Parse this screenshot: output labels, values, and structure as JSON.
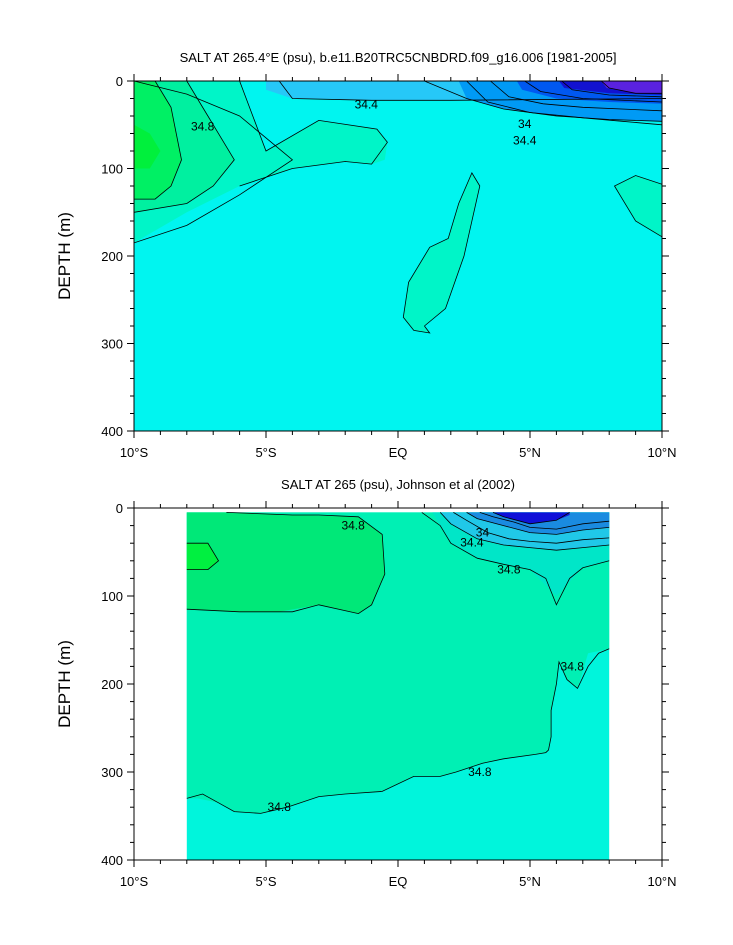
{
  "chart_data": [
    {
      "type": "heatmap",
      "title": "SALT AT 265.4°E (psu), b.e11.B20TRC5CNBDRD.f09_g16.006 [1981-2005]",
      "xlabel": "",
      "ylabel": "DEPTH (m)",
      "xlim": [
        -10,
        10
      ],
      "ylim": [
        400,
        0
      ],
      "x_ticks": [
        -10,
        -5,
        0,
        5,
        10
      ],
      "x_tick_labels": [
        "10°S",
        "5°S",
        "EQ",
        "5°N",
        "10°N"
      ],
      "y_ticks": [
        0,
        100,
        200,
        300,
        400
      ],
      "y_tick_labels": [
        "0",
        "100",
        "200",
        "300",
        "400"
      ],
      "data_extent_lat": [
        -10,
        10
      ],
      "background_color": "#00f5f0",
      "contour_labels": [
        {
          "text": "34.8",
          "lat": -7.4,
          "depth": 52
        },
        {
          "text": "34.4",
          "lat": -1.2,
          "depth": 27
        },
        {
          "text": "34",
          "lat": 4.8,
          "depth": 49
        },
        {
          "text": "34.4",
          "lat": 4.8,
          "depth": 68
        }
      ],
      "regions": [
        {
          "value": 34.2,
          "color": "#26c8f8",
          "lat": [
            -5,
            -1,
            0,
            2,
            10,
            10,
            2,
            -1,
            -4,
            -5
          ],
          "depth": [
            0,
            0,
            0,
            0,
            0,
            20,
            22,
            22,
            20,
            10
          ]
        },
        {
          "value": 34.0,
          "color": "#009af5",
          "lat": [
            2.3,
            2.6,
            4,
            6,
            8,
            10,
            10,
            8,
            6,
            4,
            2.8
          ],
          "depth": [
            0,
            20,
            32,
            40,
            44,
            46,
            0,
            0,
            0,
            0,
            0
          ]
        },
        {
          "value": 33.6,
          "color": "#0058f0",
          "lat": [
            4.5,
            4.7,
            6,
            8,
            10,
            10,
            8,
            6
          ],
          "depth": [
            0,
            10,
            20,
            24,
            26,
            0,
            0,
            0
          ]
        },
        {
          "value": 33.2,
          "color": "#1212d0",
          "lat": [
            6.1,
            6.3,
            8,
            10,
            10,
            8
          ],
          "depth": [
            0,
            8,
            14,
            16,
            0,
            0
          ]
        },
        {
          "value": 32.8,
          "color": "#5a22e0",
          "lat": [
            7.7,
            7.9,
            9,
            10,
            10
          ],
          "depth": [
            0,
            8,
            14,
            14,
            0
          ]
        },
        {
          "value": 34.6,
          "color": "#00f5c8",
          "lat": [
            -10,
            -6,
            -5,
            -3,
            -0.8,
            -0.4,
            -0.5,
            -1,
            -2,
            -4,
            -6,
            -8,
            -10
          ],
          "depth": [
            0,
            0,
            80,
            45,
            55,
            70,
            90,
            95,
            92,
            100,
            120,
            150,
            185
          ]
        },
        {
          "value": 34.6,
          "color": "#00f5c8",
          "lat": [
            1,
            1.8,
            2.5,
            3.1,
            2.8,
            2.3,
            1.9,
            1.2,
            0.4,
            0.2,
            0.6,
            1.2
          ],
          "depth": [
            280,
            260,
            200,
            120,
            105,
            140,
            180,
            190,
            230,
            270,
            285,
            288
          ]
        },
        {
          "value": 34.6,
          "color": "#00f5c8",
          "lat": [
            8.2,
            9,
            10,
            10,
            9,
            8.4
          ],
          "depth": [
            120,
            108,
            118,
            178,
            160,
            130
          ]
        },
        {
          "value": 34.8,
          "color": "#00f0a0",
          "lat": [
            -10,
            -8,
            -7.2,
            -6.2,
            -7,
            -8,
            -10
          ],
          "depth": [
            0,
            0,
            40,
            90,
            120,
            140,
            150
          ]
        },
        {
          "value": 35.0,
          "color": "#00f064",
          "lat": [
            -10,
            -9.2,
            -8.6,
            -8.2,
            -8.6,
            -9.2,
            -10
          ],
          "depth": [
            0,
            0,
            30,
            90,
            120,
            135,
            135
          ]
        },
        {
          "value": 35.2,
          "color": "#00f03c",
          "lat": [
            -10,
            -9.4,
            -9,
            -9.4,
            -10
          ],
          "depth": [
            50,
            60,
            80,
            100,
            100
          ]
        }
      ],
      "contour_lines": [
        {
          "lat": [
            -10,
            -8,
            -6,
            -4,
            -6,
            -8,
            -10
          ],
          "depth": [
            185,
            165,
            130,
            90,
            40,
            15,
            0
          ]
        },
        {
          "lat": [
            -6,
            -5,
            -3,
            -0.8,
            -0.4,
            -1,
            -2,
            -4,
            -6
          ],
          "depth": [
            0,
            80,
            45,
            55,
            70,
            95,
            92,
            100,
            120
          ]
        },
        {
          "lat": [
            -4.5,
            -4,
            -1,
            2,
            10
          ],
          "depth": [
            0,
            20,
            22,
            22,
            20
          ]
        },
        {
          "lat": [
            1,
            2.6,
            4,
            6,
            8,
            10
          ],
          "depth": [
            0,
            20,
            32,
            40,
            44,
            46
          ]
        },
        {
          "lat": [
            2.6,
            3.4,
            5,
            7,
            8.5,
            10
          ],
          "depth": [
            0,
            24,
            36,
            42,
            46,
            50
          ]
        },
        {
          "lat": [
            3.5,
            4.2,
            5.5,
            7,
            10
          ],
          "depth": [
            0,
            18,
            26,
            30,
            34
          ]
        },
        {
          "lat": [
            4.8,
            5.4,
            7,
            10
          ],
          "depth": [
            0,
            12,
            20,
            24
          ]
        },
        {
          "lat": [
            6.2,
            6.6,
            8,
            10
          ],
          "depth": [
            0,
            10,
            16,
            18
          ]
        },
        {
          "lat": [
            7.7,
            8,
            9,
            10
          ],
          "depth": [
            0,
            8,
            14,
            14
          ]
        },
        {
          "lat": [
            -8,
            -7.2,
            -6.2,
            -7,
            -8,
            -10
          ],
          "depth": [
            0,
            40,
            90,
            120,
            140,
            150
          ]
        },
        {
          "lat": [
            -9.2,
            -8.6,
            -8.2,
            -8.6,
            -9.2,
            -10
          ],
          "depth": [
            0,
            30,
            90,
            120,
            135,
            135
          ]
        },
        {
          "lat": [
            1,
            1.8,
            2.5,
            3.1,
            2.8,
            2.3,
            1.9,
            1.2,
            0.4,
            0.2,
            0.6,
            1.2,
            1
          ],
          "depth": [
            280,
            260,
            200,
            120,
            105,
            140,
            180,
            190,
            230,
            270,
            285,
            288,
            280
          ]
        },
        {
          "lat": [
            10,
            9,
            8.2,
            8.4,
            9,
            10
          ],
          "depth": [
            118,
            108,
            120,
            130,
            160,
            178
          ]
        }
      ]
    },
    {
      "type": "heatmap",
      "title": "SALT AT 265 (psu), Johnson et al (2002)",
      "xlabel": "",
      "ylabel": "DEPTH (m)",
      "xlim": [
        -10,
        10
      ],
      "ylim": [
        400,
        0
      ],
      "x_ticks": [
        -10,
        -5,
        0,
        5,
        10
      ],
      "x_tick_labels": [
        "10°S",
        "5°S",
        "EQ",
        "5°N",
        "10°N"
      ],
      "y_ticks": [
        0,
        100,
        200,
        300,
        400
      ],
      "y_tick_labels": [
        "0",
        "100",
        "200",
        "300",
        "400"
      ],
      "data_extent_lat": [
        -8,
        8
      ],
      "data_extent_depth": [
        5,
        400
      ],
      "background_color": "#00f5dc",
      "contour_labels": [
        {
          "text": "34.8",
          "lat": -1.7,
          "depth": 20
        },
        {
          "text": "34",
          "lat": 3.2,
          "depth": 28
        },
        {
          "text": "34.4",
          "lat": 2.8,
          "depth": 39
        },
        {
          "text": "34.8",
          "lat": 4.2,
          "depth": 70
        },
        {
          "text": "34.8",
          "lat": 6.6,
          "depth": 180
        },
        {
          "text": "34.8",
          "lat": 3.1,
          "depth": 300
        },
        {
          "text": "34.8",
          "lat": -4.5,
          "depth": 340
        }
      ],
      "regions": [
        {
          "value": 34.9,
          "color": "#00f0b4",
          "lat": [
            -8,
            8,
            8,
            7.2,
            6.8,
            6.4,
            6.1,
            6,
            5.8,
            5.8,
            5.7,
            5.6,
            5.2,
            4,
            3.2,
            2.2,
            1.6,
            0.6,
            -0.6,
            -2,
            -3,
            -4.2,
            -5.2,
            -6.2,
            -6.8,
            -7.6,
            -8
          ],
          "depth": [
            5,
            5,
            160,
            165,
            205,
            195,
            175,
            200,
            230,
            260,
            275,
            278,
            280,
            285,
            290,
            300,
            305,
            305,
            322,
            325,
            328,
            340,
            347,
            345,
            335,
            330,
            330
          ]
        },
        {
          "value": 34.6,
          "color": "#00e6c8",
          "lat": [
            0.9,
            1.3,
            1.6,
            2,
            3,
            4,
            5,
            6,
            7,
            8,
            8,
            1.2
          ],
          "depth": [
            5,
            5,
            20,
            40,
            57,
            64,
            70,
            100,
            68,
            60,
            5,
            5
          ]
        },
        {
          "value": 34.4,
          "color": "#20c8e8",
          "lat": [
            1.6,
            2,
            3,
            4,
            5,
            6,
            7,
            8,
            8,
            2
          ],
          "depth": [
            5,
            18,
            35,
            42,
            45,
            48,
            45,
            42,
            5,
            5
          ]
        },
        {
          "value": 34.0,
          "color": "#1a8be0",
          "lat": [
            2.6,
            3,
            4,
            5,
            6,
            7,
            8,
            8,
            3
          ],
          "depth": [
            5,
            12,
            20,
            28,
            30,
            25,
            22,
            5,
            5
          ]
        },
        {
          "value": 33.4,
          "color": "#1010d8",
          "lat": [
            3.6,
            4,
            5,
            6,
            6.5,
            6.5,
            4
          ],
          "depth": [
            5,
            10,
            18,
            14,
            8,
            5,
            5
          ]
        },
        {
          "value": 35.0,
          "color": "#00e878",
          "lat": [
            -8,
            -6.5,
            -4,
            -1.5,
            -0.6,
            -0.5,
            -1,
            -1.5,
            -3,
            -4.5,
            -6,
            -8
          ],
          "depth": [
            5,
            5,
            8,
            10,
            30,
            75,
            110,
            120,
            110,
            118,
            118,
            115
          ]
        },
        {
          "value": 35.2,
          "color": "#00f040",
          "lat": [
            -8,
            -7.2,
            -6.8,
            -7.2,
            -8
          ],
          "depth": [
            40,
            40,
            60,
            70,
            70
          ]
        }
      ],
      "contour_lines": [
        {
          "lat": [
            -8,
            -6,
            -4,
            -3,
            -1.5,
            -1,
            -0.5,
            -0.6,
            -1.5,
            -3,
            -4,
            -6.5
          ],
          "depth": [
            115,
            118,
            118,
            110,
            120,
            110,
            75,
            30,
            10,
            8,
            8,
            5
          ]
        },
        {
          "lat": [
            -8,
            -7.2,
            -6.8,
            -7.2,
            -8
          ],
          "depth": [
            40,
            40,
            60,
            70,
            70
          ]
        },
        {
          "lat": [
            -8,
            -7.4,
            -6.8,
            -6.2,
            -5.2,
            -4.2,
            -3,
            -2,
            -0.6,
            0.6,
            1.6,
            2.2,
            3.2,
            4,
            5.2,
            5.6,
            5.7,
            5.8,
            5.8,
            6,
            6.1,
            6.4,
            6.8,
            7.2,
            7.6,
            8
          ],
          "depth": [
            330,
            325,
            335,
            345,
            347,
            340,
            328,
            325,
            322,
            305,
            305,
            300,
            290,
            285,
            280,
            278,
            275,
            260,
            230,
            200,
            175,
            195,
            205,
            180,
            165,
            160
          ]
        },
        {
          "lat": [
            0.9,
            1.6,
            2,
            3,
            4,
            5,
            5.6,
            6,
            6.5,
            7,
            8
          ],
          "depth": [
            5,
            20,
            40,
            57,
            64,
            70,
            80,
            110,
            80,
            68,
            60
          ]
        },
        {
          "lat": [
            1.6,
            2,
            3,
            4,
            5,
            6,
            7,
            8
          ],
          "depth": [
            5,
            18,
            35,
            42,
            45,
            48,
            45,
            42
          ]
        },
        {
          "lat": [
            2.1,
            2.6,
            3.4,
            4.2,
            5,
            6,
            7,
            8
          ],
          "depth": [
            5,
            14,
            28,
            35,
            38,
            40,
            36,
            34
          ]
        },
        {
          "lat": [
            2.6,
            3,
            4,
            5,
            6,
            7,
            8
          ],
          "depth": [
            5,
            12,
            20,
            28,
            30,
            25,
            22
          ]
        },
        {
          "lat": [
            3.1,
            3.6,
            4.4,
            5,
            6,
            7,
            8
          ],
          "depth": [
            5,
            10,
            16,
            22,
            24,
            18,
            15
          ]
        },
        {
          "lat": [
            3.6,
            4,
            5,
            6,
            6.5
          ],
          "depth": [
            5,
            10,
            18,
            14,
            5
          ]
        }
      ]
    }
  ]
}
